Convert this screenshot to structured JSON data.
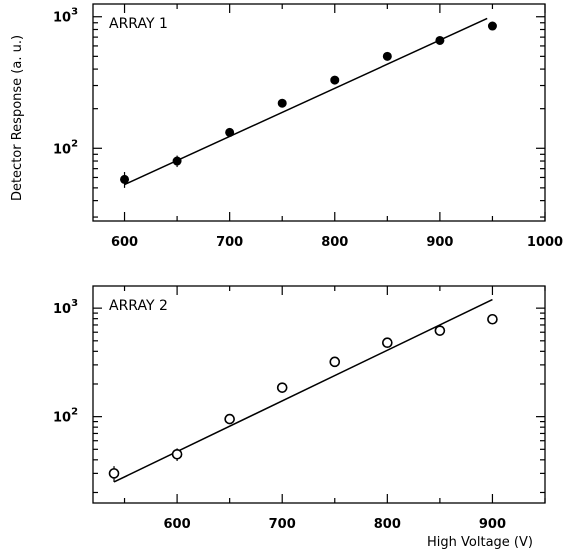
{
  "chart_data": [
    {
      "type": "scatter",
      "panel_label": "ARRAY 1",
      "marker": "filled-circle",
      "log_y": true,
      "xlim": [
        570,
        1000
      ],
      "ylim": [
        28,
        1250
      ],
      "x_ticks": [
        600,
        700,
        800,
        900,
        1000
      ],
      "x_tick_labels": [
        "600",
        "700",
        "800",
        "900",
        "1000"
      ],
      "y_tick_labels": [
        {
          "base": "10",
          "exp": "2",
          "value": 100
        },
        {
          "base": "10",
          "exp": "3",
          "value": 1000
        }
      ],
      "points": [
        {
          "x": 600,
          "y": 58,
          "err": 8
        },
        {
          "x": 650,
          "y": 80,
          "err": 8
        },
        {
          "x": 700,
          "y": 132,
          "err": 10
        },
        {
          "x": 750,
          "y": 220,
          "err": 0
        },
        {
          "x": 800,
          "y": 330,
          "err": 0
        },
        {
          "x": 850,
          "y": 500,
          "err": 0
        },
        {
          "x": 900,
          "y": 660,
          "err": 0
        },
        {
          "x": 950,
          "y": 850,
          "err": 0
        }
      ],
      "fit_line": [
        {
          "x": 600,
          "y": 53
        },
        {
          "x": 945,
          "y": 970
        }
      ]
    },
    {
      "type": "scatter",
      "panel_label": "ARRAY 2",
      "marker": "open-circle",
      "log_y": true,
      "xlim": [
        520,
        950
      ],
      "ylim": [
        16,
        1600
      ],
      "x_ticks": [
        600,
        700,
        800,
        900
      ],
      "x_tick_labels": [
        "600",
        "700",
        "800",
        "900"
      ],
      "y_tick_labels": [
        {
          "base": "10",
          "exp": "2",
          "value": 100
        },
        {
          "base": "10",
          "exp": "3",
          "value": 1000
        }
      ],
      "points": [
        {
          "x": 540,
          "y": 30,
          "err": 5
        },
        {
          "x": 600,
          "y": 45,
          "err": 6
        },
        {
          "x": 650,
          "y": 95,
          "err": 0
        },
        {
          "x": 700,
          "y": 185,
          "err": 0
        },
        {
          "x": 750,
          "y": 320,
          "err": 0
        },
        {
          "x": 800,
          "y": 480,
          "err": 0
        },
        {
          "x": 850,
          "y": 620,
          "err": 0
        },
        {
          "x": 900,
          "y": 790,
          "err": 0
        }
      ],
      "fit_line": [
        {
          "x": 540,
          "y": 25
        },
        {
          "x": 900,
          "y": 1200
        }
      ]
    }
  ],
  "ylabel": "Detector Response (a. u.)",
  "xlabel": "High Voltage (V)"
}
